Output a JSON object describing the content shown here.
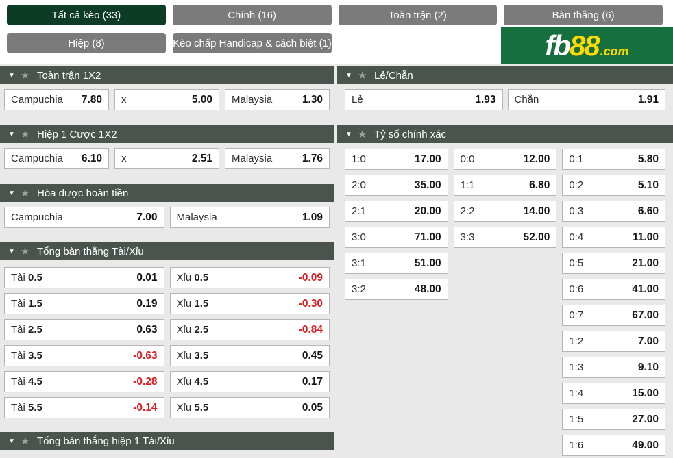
{
  "colors": {
    "active_tab_green": "#0c3b26",
    "tab_gray": "#7b7b7b",
    "section_header_bg": "#4a544c",
    "negative_red": "#e21a1f",
    "logo_green": "#16703e",
    "logo_yellow": "#ffd900",
    "panel_gray": "#e9e9e9"
  },
  "tabs": {
    "row1": [
      {
        "label": "Tất cả kèo (33)"
      },
      {
        "label": "Chính (16)"
      },
      {
        "label": "Toàn trận (2)"
      },
      {
        "label": "Bàn thắng (6)"
      }
    ],
    "row2": [
      {
        "label": "Hiệp (8)"
      },
      {
        "label": "Kèo chấp Handicap & cách biệt (1)"
      }
    ]
  },
  "logo": {
    "fb": "fb",
    "num": "88",
    "com": ".com"
  },
  "sections": {
    "fulltime_1x2": {
      "title": "Toàn trận 1X2",
      "cells": [
        {
          "label": "Campuchia",
          "value": "7.80"
        },
        {
          "label": "x",
          "value": "5.00"
        },
        {
          "label": "Malaysia",
          "value": "1.30"
        }
      ]
    },
    "half1_1x2": {
      "title": "Hiệp 1 Cược 1X2",
      "cells": [
        {
          "label": "Campuchia",
          "value": "6.10"
        },
        {
          "label": "x",
          "value": "2.51"
        },
        {
          "label": "Malaysia",
          "value": "1.76"
        }
      ]
    },
    "draw_refund": {
      "title": "Hòa được hoàn tiền",
      "cells": [
        {
          "label": "Campuchia",
          "value": "7.00"
        },
        {
          "label": "Malaysia",
          "value": "1.09"
        }
      ]
    },
    "total_goals": {
      "title": "Tổng bàn thắng Tài/Xỉu",
      "rows": [
        {
          "over_label": "Tài",
          "over_line": "0.5",
          "over_value": "0.01",
          "under_label": "Xỉu",
          "under_line": "0.5",
          "under_value": "-0.09"
        },
        {
          "over_label": "Tài",
          "over_line": "1.5",
          "over_value": "0.19",
          "under_label": "Xỉu",
          "under_line": "1.5",
          "under_value": "-0.30"
        },
        {
          "over_label": "Tài",
          "over_line": "2.5",
          "over_value": "0.63",
          "under_label": "Xỉu",
          "under_line": "2.5",
          "under_value": "-0.84"
        },
        {
          "over_label": "Tài",
          "over_line": "3.5",
          "over_value": "-0.63",
          "under_label": "Xỉu",
          "under_line": "3.5",
          "under_value": "0.45"
        },
        {
          "over_label": "Tài",
          "over_line": "4.5",
          "over_value": "-0.28",
          "under_label": "Xỉu",
          "under_line": "4.5",
          "under_value": "0.17"
        },
        {
          "over_label": "Tài",
          "over_line": "5.5",
          "over_value": "-0.14",
          "under_label": "Xỉu",
          "under_line": "5.5",
          "under_value": "0.05"
        }
      ]
    },
    "half1_total_goals": {
      "title": "Tổng bàn thắng hiệp 1 Tài/Xỉu"
    },
    "odd_even": {
      "title": "Lẻ/Chẵn",
      "cells": [
        {
          "label": "Lẻ",
          "value": "1.93"
        },
        {
          "label": "Chẵn",
          "value": "1.91"
        }
      ]
    },
    "correct_score": {
      "title": "Tỷ số chính xác",
      "col1": [
        {
          "label": "1:0",
          "value": "17.00"
        },
        {
          "label": "2:0",
          "value": "35.00"
        },
        {
          "label": "2:1",
          "value": "20.00"
        },
        {
          "label": "3:0",
          "value": "71.00"
        },
        {
          "label": "3:1",
          "value": "51.00"
        },
        {
          "label": "3:2",
          "value": "48.00"
        }
      ],
      "col2": [
        {
          "label": "0:0",
          "value": "12.00"
        },
        {
          "label": "1:1",
          "value": "6.80"
        },
        {
          "label": "2:2",
          "value": "14.00"
        },
        {
          "label": "3:3",
          "value": "52.00"
        }
      ],
      "col3": [
        {
          "label": "0:1",
          "value": "5.80"
        },
        {
          "label": "0:2",
          "value": "5.10"
        },
        {
          "label": "0:3",
          "value": "6.60"
        },
        {
          "label": "0:4",
          "value": "11.00"
        },
        {
          "label": "0:5",
          "value": "21.00"
        },
        {
          "label": "0:6",
          "value": "41.00"
        },
        {
          "label": "0:7",
          "value": "67.00"
        },
        {
          "label": "1:2",
          "value": "7.00"
        },
        {
          "label": "1:3",
          "value": "9.10"
        },
        {
          "label": "1:4",
          "value": "15.00"
        },
        {
          "label": "1:5",
          "value": "27.00"
        },
        {
          "label": "1:6",
          "value": "49.00"
        }
      ]
    }
  }
}
